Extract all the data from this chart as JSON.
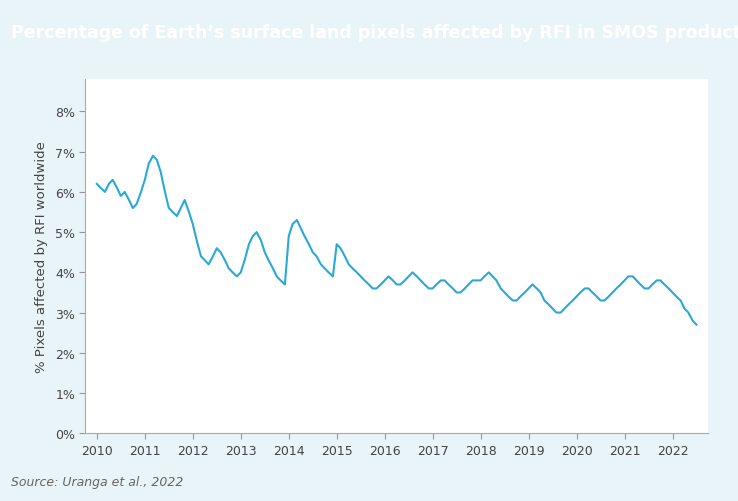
{
  "title": "Percentage of Earth’s surface land pixels affected by RFI in SMOS products",
  "ylabel": "% Pixels affected by RFI worldwide",
  "source": "Source: Uranga et al., 2022",
  "line_color": "#29a9d8",
  "outer_bg": "#e8f4f8",
  "header_color": "#1aace3",
  "plot_bg": "#ffffff",
  "border_color": "#c0c8cc",
  "ylim": [
    0,
    0.088
  ],
  "yticks": [
    0.0,
    0.01,
    0.02,
    0.03,
    0.04,
    0.05,
    0.06,
    0.07,
    0.08
  ],
  "ytick_labels": [
    "0%",
    "1%",
    "2%",
    "3%",
    "4%",
    "5%",
    "6%",
    "7%",
    "8%"
  ],
  "xtick_years": [
    2010,
    2011,
    2012,
    2013,
    2014,
    2015,
    2016,
    2017,
    2018,
    2019,
    2020,
    2021,
    2022
  ],
  "xlim": [
    2009.75,
    2022.75
  ],
  "x": [
    2010.0,
    2010.08,
    2010.17,
    2010.25,
    2010.33,
    2010.42,
    2010.5,
    2010.58,
    2010.67,
    2010.75,
    2010.83,
    2010.92,
    2011.0,
    2011.08,
    2011.17,
    2011.25,
    2011.33,
    2011.42,
    2011.5,
    2011.58,
    2011.67,
    2011.75,
    2011.83,
    2011.92,
    2012.0,
    2012.08,
    2012.17,
    2012.25,
    2012.33,
    2012.42,
    2012.5,
    2012.58,
    2012.67,
    2012.75,
    2012.83,
    2012.92,
    2013.0,
    2013.08,
    2013.17,
    2013.25,
    2013.33,
    2013.42,
    2013.5,
    2013.58,
    2013.67,
    2013.75,
    2013.83,
    2013.92,
    2014.0,
    2014.08,
    2014.17,
    2014.25,
    2014.33,
    2014.42,
    2014.5,
    2014.58,
    2014.67,
    2014.75,
    2014.83,
    2014.92,
    2015.0,
    2015.08,
    2015.17,
    2015.25,
    2015.33,
    2015.42,
    2015.5,
    2015.58,
    2015.67,
    2015.75,
    2015.83,
    2015.92,
    2016.0,
    2016.08,
    2016.17,
    2016.25,
    2016.33,
    2016.42,
    2016.5,
    2016.58,
    2016.67,
    2016.75,
    2016.83,
    2016.92,
    2017.0,
    2017.08,
    2017.17,
    2017.25,
    2017.33,
    2017.42,
    2017.5,
    2017.58,
    2017.67,
    2017.75,
    2017.83,
    2017.92,
    2018.0,
    2018.08,
    2018.17,
    2018.25,
    2018.33,
    2018.42,
    2018.5,
    2018.58,
    2018.67,
    2018.75,
    2018.83,
    2018.92,
    2019.0,
    2019.08,
    2019.17,
    2019.25,
    2019.33,
    2019.42,
    2019.5,
    2019.58,
    2019.67,
    2019.75,
    2019.83,
    2019.92,
    2020.0,
    2020.08,
    2020.17,
    2020.25,
    2020.33,
    2020.42,
    2020.5,
    2020.58,
    2020.67,
    2020.75,
    2020.83,
    2020.92,
    2021.0,
    2021.08,
    2021.17,
    2021.25,
    2021.33,
    2021.42,
    2021.5,
    2021.58,
    2021.67,
    2021.75,
    2021.83,
    2021.92,
    2022.0,
    2022.08,
    2022.17,
    2022.25,
    2022.33,
    2022.42,
    2022.5
  ],
  "y": [
    0.062,
    0.061,
    0.06,
    0.062,
    0.063,
    0.061,
    0.059,
    0.06,
    0.058,
    0.056,
    0.057,
    0.06,
    0.063,
    0.067,
    0.069,
    0.068,
    0.065,
    0.06,
    0.056,
    0.055,
    0.054,
    0.056,
    0.058,
    0.055,
    0.052,
    0.048,
    0.044,
    0.043,
    0.042,
    0.044,
    0.046,
    0.045,
    0.043,
    0.041,
    0.04,
    0.039,
    0.04,
    0.043,
    0.047,
    0.049,
    0.05,
    0.048,
    0.045,
    0.043,
    0.041,
    0.039,
    0.038,
    0.037,
    0.049,
    0.052,
    0.053,
    0.051,
    0.049,
    0.047,
    0.045,
    0.044,
    0.042,
    0.041,
    0.04,
    0.039,
    0.047,
    0.046,
    0.044,
    0.042,
    0.041,
    0.04,
    0.039,
    0.038,
    0.037,
    0.036,
    0.036,
    0.037,
    0.038,
    0.039,
    0.038,
    0.037,
    0.037,
    0.038,
    0.039,
    0.04,
    0.039,
    0.038,
    0.037,
    0.036,
    0.036,
    0.037,
    0.038,
    0.038,
    0.037,
    0.036,
    0.035,
    0.035,
    0.036,
    0.037,
    0.038,
    0.038,
    0.038,
    0.039,
    0.04,
    0.039,
    0.038,
    0.036,
    0.035,
    0.034,
    0.033,
    0.033,
    0.034,
    0.035,
    0.036,
    0.037,
    0.036,
    0.035,
    0.033,
    0.032,
    0.031,
    0.03,
    0.03,
    0.031,
    0.032,
    0.033,
    0.034,
    0.035,
    0.036,
    0.036,
    0.035,
    0.034,
    0.033,
    0.033,
    0.034,
    0.035,
    0.036,
    0.037,
    0.038,
    0.039,
    0.039,
    0.038,
    0.037,
    0.036,
    0.036,
    0.037,
    0.038,
    0.038,
    0.037,
    0.036,
    0.035,
    0.034,
    0.033,
    0.031,
    0.03,
    0.028,
    0.027
  ],
  "title_fontsize": 12.5,
  "ylabel_fontsize": 9.5,
  "tick_fontsize": 9,
  "source_fontsize": 9,
  "line_width": 1.5
}
